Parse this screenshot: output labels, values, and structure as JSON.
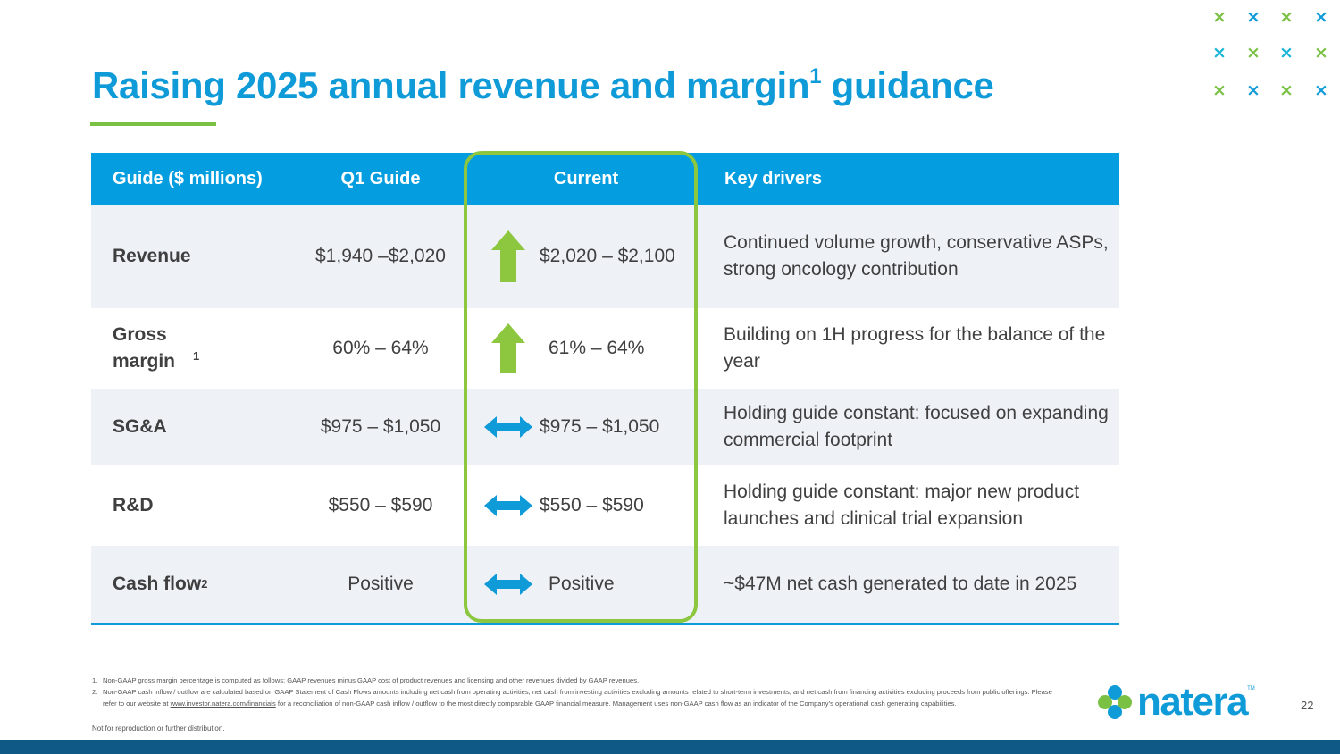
{
  "slide": {
    "title": {
      "main": "Raising 2025 annual revenue and margin",
      "sup": "1",
      "end": " guidance"
    },
    "page_number": "22",
    "accent_colors": {
      "blue": "#0f9ad8",
      "green": "#8dc63f",
      "navy": "#0e5986"
    }
  },
  "table": {
    "headers": {
      "metric": "Guide ($ millions)",
      "q1": "Q1 Guide",
      "current": "Current",
      "drivers": "Key drivers"
    },
    "rows": [
      {
        "metric": "Revenue",
        "sup": "",
        "q1": "$1,940 –$2,020",
        "trend": "up",
        "trend_icon": "up-arrow-icon",
        "current": "$2,020 – $2,100",
        "drivers": "Continued volume growth, conservative ASPs, strong oncology contribution"
      },
      {
        "metric": "Gross margin",
        "sup": "1",
        "q1": "60% – 64%",
        "trend": "up",
        "trend_icon": "up-arrow-icon",
        "current": "61% – 64%",
        "drivers": "Building on 1H progress for the balance of the year"
      },
      {
        "metric": "SG&A",
        "sup": "",
        "q1": "$975 – $1,050",
        "trend": "flat",
        "trend_icon": "double-arrow-icon",
        "current": "$975 – $1,050",
        "drivers": "Holding guide constant: focused on expanding commercial footprint"
      },
      {
        "metric": "R&D",
        "sup": "",
        "q1": "$550 – $590",
        "trend": "flat",
        "trend_icon": "double-arrow-icon",
        "current": "$550 – $590",
        "drivers": "Holding guide constant: major new product launches and clinical trial expansion"
      },
      {
        "metric": "Cash flow",
        "sup": "2",
        "q1": "Positive",
        "trend": "flat",
        "trend_icon": "double-arrow-icon",
        "current": "Positive",
        "drivers": "~$47M net cash generated to date in 2025"
      }
    ]
  },
  "footnotes": {
    "fn1_num": "1.",
    "fn1": "Non-GAAP gross margin percentage is computed as follows: GAAP revenues minus GAAP cost of product revenues and licensing and other revenues divided by GAAP revenues.",
    "fn2_num": "2.",
    "fn2_a": "Non-GAAP cash inflow / outflow are calculated based on GAAP Statement of Cash Flows amounts including net cash from operating activities, net cash from investing activities excluding amounts related to short-term investments, and net cash from financing activities excluding proceeds from public offerings. Please refer to our website at ",
    "fn2_link": "www.investor.natera.com/financials",
    "fn2_b": " for a reconciliation of non-GAAP cash inflow / outflow to the most directly comparable GAAP financial measure. Management uses non-GAAP cash flow as an indicator of the Company’s operational cash generating capabilities.",
    "disclaimer": "Not for reproduction or further distribution."
  },
  "logo": {
    "text": "natera",
    "tm": "TM"
  },
  "decor": {
    "marks": [
      {
        "glyph": "×",
        "color": "#7ac143"
      },
      {
        "glyph": "×",
        "color": "#0f9ad8"
      },
      {
        "glyph": "×",
        "color": "#7ac143"
      },
      {
        "glyph": "×",
        "color": "#0f9ad8"
      },
      {
        "glyph": "×",
        "color": "#18b4d6"
      },
      {
        "glyph": "×",
        "color": "#7ac143"
      },
      {
        "glyph": "×",
        "color": "#18b4d6"
      },
      {
        "glyph": "×",
        "color": "#7ac143"
      },
      {
        "glyph": "×",
        "color": "#7ac143"
      },
      {
        "glyph": "×",
        "color": "#0f9ad8"
      },
      {
        "glyph": "×",
        "color": "#7ac143"
      },
      {
        "glyph": "×",
        "color": "#0f9ad8"
      }
    ]
  }
}
